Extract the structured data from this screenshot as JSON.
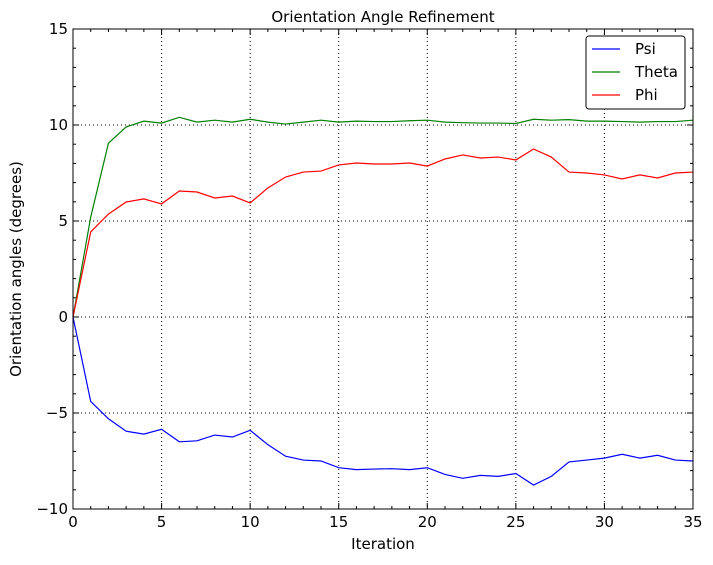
{
  "chart_data": {
    "type": "line",
    "title": "Orientation Angle Refinement",
    "xlabel": "Iteration",
    "ylabel": "Orientation angles (degrees)",
    "xlim": [
      0,
      35
    ],
    "ylim": [
      -10,
      15
    ],
    "xticks": [
      0,
      5,
      10,
      15,
      20,
      25,
      30,
      35
    ],
    "yticks": [
      -10,
      -5,
      0,
      5,
      10,
      15
    ],
    "xtick_labels": [
      "0",
      "5",
      "10",
      "15",
      "20",
      "25",
      "30",
      "35"
    ],
    "ytick_labels": [
      "−10",
      "−5",
      "0",
      "5",
      "10",
      "15"
    ],
    "grid": true,
    "legend_position": "top-right",
    "x": [
      0,
      1,
      2,
      3,
      4,
      5,
      6,
      7,
      8,
      9,
      10,
      11,
      12,
      13,
      14,
      15,
      16,
      17,
      18,
      19,
      20,
      21,
      22,
      23,
      24,
      25,
      26,
      27,
      28,
      29,
      30,
      31,
      32,
      33,
      34,
      35
    ],
    "series": [
      {
        "name": "Psi",
        "color": "#0000ff",
        "values": [
          0,
          -4.4,
          -5.3,
          -5.95,
          -6.1,
          -5.85,
          -6.5,
          -6.45,
          -6.15,
          -6.25,
          -5.9,
          -6.65,
          -7.25,
          -7.45,
          -7.5,
          -7.85,
          -7.95,
          -7.92,
          -7.9,
          -7.95,
          -7.85,
          -8.2,
          -8.4,
          -8.25,
          -8.3,
          -8.15,
          -8.75,
          -8.3,
          -7.55,
          -7.45,
          -7.35,
          -7.15,
          -7.35,
          -7.2,
          -7.45,
          -7.5
        ]
      },
      {
        "name": "Theta",
        "color": "#008000",
        "values": [
          0,
          5.2,
          9.05,
          9.9,
          10.2,
          10.1,
          10.4,
          10.15,
          10.25,
          10.15,
          10.3,
          10.15,
          10.05,
          10.15,
          10.25,
          10.15,
          10.2,
          10.18,
          10.18,
          10.22,
          10.25,
          10.15,
          10.12,
          10.1,
          10.1,
          10.08,
          10.3,
          10.25,
          10.28,
          10.2,
          10.2,
          10.18,
          10.15,
          10.18,
          10.18,
          10.25
        ]
      },
      {
        "name": "Phi",
        "color": "#ff0000",
        "values": [
          0,
          4.43,
          5.36,
          5.99,
          6.15,
          5.89,
          6.56,
          6.51,
          6.2,
          6.3,
          5.94,
          6.72,
          7.29,
          7.55,
          7.6,
          7.92,
          8.02,
          7.97,
          7.97,
          8.02,
          7.86,
          8.23,
          8.44,
          8.28,
          8.33,
          8.18,
          8.75,
          8.33,
          7.55,
          7.5,
          7.4,
          7.19,
          7.4,
          7.24,
          7.5,
          7.55
        ]
      }
    ]
  }
}
